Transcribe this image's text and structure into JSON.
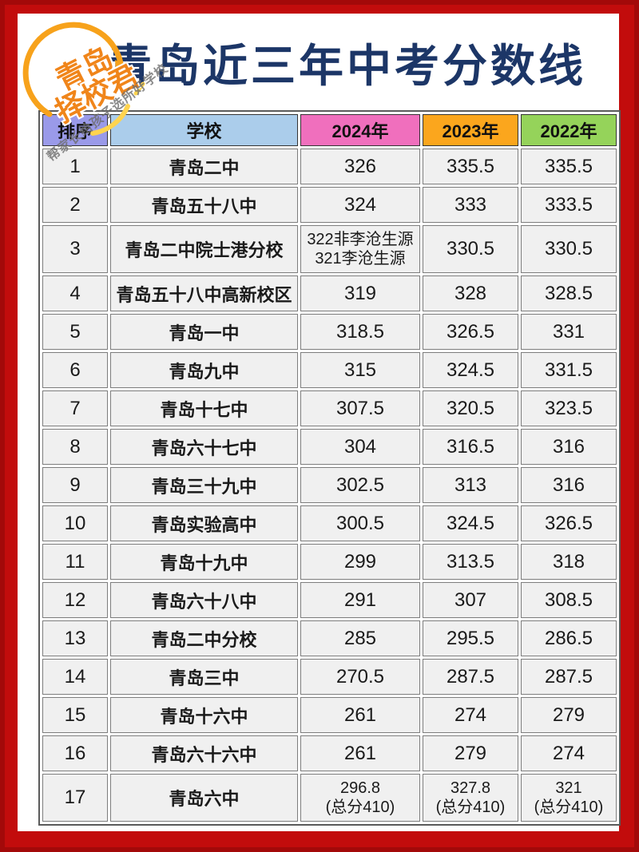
{
  "page": {
    "title": "青岛近三年中考分数线"
  },
  "logo": {
    "line1": "青岛",
    "line2": "择校君",
    "color": "#f0851a"
  },
  "watermark": {
    "text": "帮家长给孩子选所好学校"
  },
  "colors": {
    "frame": "#c20c0c",
    "frame_edge": "#a30909",
    "page_bg": "#ffffff",
    "title": "#1c3667",
    "cell_bg": "#f0f0f0",
    "cell_border": "#7d7d7d"
  },
  "chart_data": {
    "type": "table",
    "title": "青岛近三年中考分数线",
    "columns": [
      "排序",
      "学校",
      "2024年",
      "2023年",
      "2022年"
    ],
    "header_colors": [
      "#9a9ae9",
      "#abcdeb",
      "#f06fbd",
      "#fba61d",
      "#95d35a"
    ],
    "rows": [
      [
        "1",
        "青岛二中",
        "326",
        "335.5",
        "335.5"
      ],
      [
        "2",
        "青岛五十八中",
        "324",
        "333",
        "333.5"
      ],
      [
        "3",
        "青岛二中院士港分校",
        "322非李沧生源\n321李沧生源",
        "330.5",
        "330.5"
      ],
      [
        "4",
        "青岛五十八中高新校区",
        "319",
        "328",
        "328.5"
      ],
      [
        "5",
        "青岛一中",
        "318.5",
        "326.5",
        "331"
      ],
      [
        "6",
        "青岛九中",
        "315",
        "324.5",
        "331.5"
      ],
      [
        "7",
        "青岛十七中",
        "307.5",
        "320.5",
        "323.5"
      ],
      [
        "8",
        "青岛六十七中",
        "304",
        "316.5",
        "316"
      ],
      [
        "9",
        "青岛三十九中",
        "302.5",
        "313",
        "316"
      ],
      [
        "10",
        "青岛实验高中",
        "300.5",
        "324.5",
        "326.5"
      ],
      [
        "11",
        "青岛十九中",
        "299",
        "313.5",
        "318"
      ],
      [
        "12",
        "青岛六十八中",
        "291",
        "307",
        "308.5"
      ],
      [
        "13",
        "青岛二中分校",
        "285",
        "295.5",
        "286.5"
      ],
      [
        "14",
        "青岛三中",
        "270.5",
        "287.5",
        "287.5"
      ],
      [
        "15",
        "青岛十六中",
        "261",
        "274",
        "279"
      ],
      [
        "16",
        "青岛六十六中",
        "261",
        "279",
        "274"
      ],
      [
        "17",
        "青岛六中",
        "296.8\n(总分410)",
        "327.8\n(总分410)",
        "321\n(总分410)"
      ]
    ]
  }
}
